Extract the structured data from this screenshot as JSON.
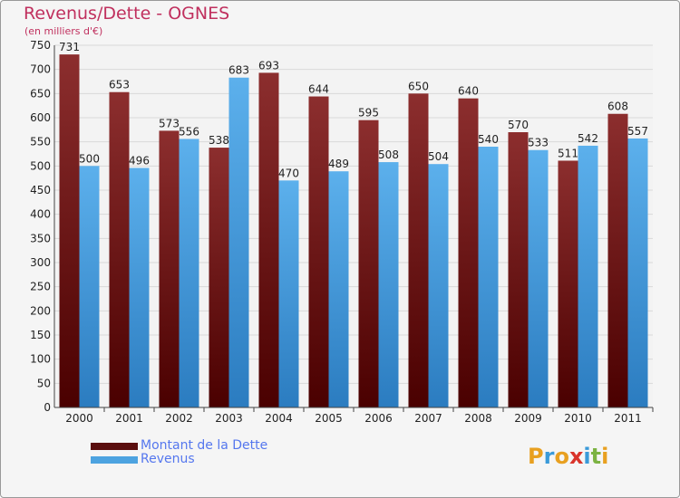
{
  "header": {
    "title": "Revenus/Dette - OGNES",
    "subtitle": "(en milliers d'€)"
  },
  "chart_data": {
    "type": "bar",
    "categories": [
      "2000",
      "2001",
      "2002",
      "2003",
      "2004",
      "2005",
      "2006",
      "2007",
      "2008",
      "2009",
      "2010",
      "2011"
    ],
    "series": [
      {
        "name": "Montant de la Dette",
        "values": [
          731,
          653,
          573,
          538,
          693,
          644,
          595,
          650,
          640,
          570,
          511,
          608
        ],
        "color": "#7a1c1c"
      },
      {
        "name": "Revenus",
        "values": [
          500,
          496,
          556,
          683,
          470,
          489,
          508,
          504,
          540,
          533,
          542,
          557
        ],
        "color": "#4da3e0"
      }
    ],
    "ylim": [
      0,
      750
    ],
    "yticks": [
      0,
      50,
      100,
      150,
      200,
      250,
      300,
      350,
      400,
      450,
      500,
      550,
      600,
      650,
      700,
      750
    ],
    "grid": true,
    "legend_position": "bottom-left"
  },
  "legend": {
    "items": [
      {
        "label": "Montant de la Dette",
        "color": "#5a0e0e"
      },
      {
        "label": "Revenus",
        "color": "#4da3e0"
      }
    ]
  },
  "logo": {
    "letters": [
      "P",
      "r",
      "o",
      "x",
      "i",
      "t",
      "i"
    ],
    "colors": [
      "#e8a020",
      "#3a9ad9",
      "#e8a020",
      "#d9342b",
      "#3a9ad9",
      "#7cb342",
      "#e8a020"
    ]
  }
}
